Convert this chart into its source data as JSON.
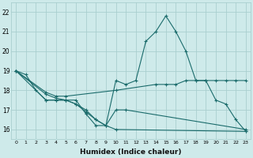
{
  "xlabel": "Humidex (Indice chaleur)",
  "bg_color": "#ceeaea",
  "grid_color": "#aacfcf",
  "line_color": "#1a6b6b",
  "xlim": [
    -0.5,
    23.5
  ],
  "ylim": [
    15.5,
    22.5
  ],
  "yticks": [
    16,
    17,
    18,
    19,
    20,
    21,
    22
  ],
  "xticks": [
    0,
    1,
    2,
    3,
    4,
    5,
    6,
    7,
    8,
    9,
    10,
    11,
    12,
    13,
    14,
    15,
    16,
    17,
    18,
    19,
    20,
    21,
    22,
    23
  ],
  "series": [
    {
      "x": [
        0,
        1,
        2,
        3,
        4,
        5,
        6,
        7,
        8,
        9,
        10,
        11,
        12,
        13,
        14,
        15,
        16,
        17,
        18,
        19,
        20,
        21,
        22,
        23
      ],
      "y": [
        19.0,
        18.8,
        18.0,
        17.5,
        17.5,
        17.5,
        17.5,
        16.8,
        16.2,
        16.2,
        18.5,
        18.3,
        18.5,
        20.5,
        21.0,
        21.8,
        21.0,
        20.0,
        18.5,
        18.5,
        17.5,
        17.3,
        16.5,
        15.9
      ]
    },
    {
      "x": [
        0,
        3,
        4,
        5,
        10,
        14,
        15,
        16,
        17,
        18,
        19,
        20,
        21,
        22,
        23
      ],
      "y": [
        19.0,
        17.9,
        17.7,
        17.7,
        18.0,
        18.3,
        18.3,
        18.3,
        18.5,
        18.5,
        18.5,
        18.5,
        18.5,
        18.5,
        18.5
      ]
    },
    {
      "x": [
        0,
        3,
        4,
        5,
        6,
        7,
        8,
        9,
        10,
        23
      ],
      "y": [
        19.0,
        17.5,
        17.5,
        17.5,
        17.3,
        16.9,
        16.5,
        16.2,
        16.0,
        15.9
      ]
    },
    {
      "x": [
        0,
        3,
        4,
        5,
        6,
        7,
        8,
        9,
        10,
        11,
        23
      ],
      "y": [
        19.0,
        17.8,
        17.6,
        17.5,
        17.3,
        17.0,
        16.5,
        16.2,
        17.0,
        17.0,
        16.0
      ]
    }
  ]
}
